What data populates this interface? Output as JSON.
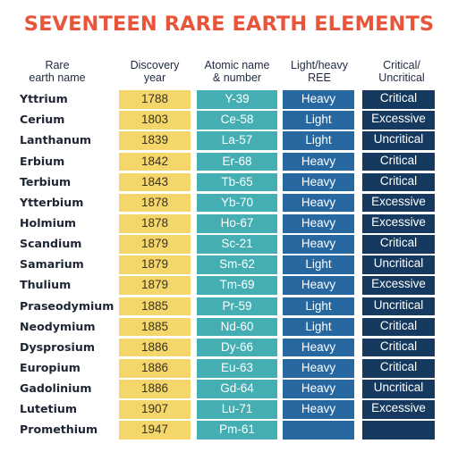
{
  "title": "SEVENTEEN RARE EARTH ELEMENTS",
  "headers": {
    "name_line1": "Rare",
    "name_line2": "earth name",
    "year_line1": "Discovery",
    "year_line2": "year",
    "atomic_line1": "Atomic name",
    "atomic_line2": "& number",
    "lh_line1": "Light/heavy",
    "lh_line2": "REE",
    "crit_line1": "Critical/",
    "crit_line2": "Uncritical"
  },
  "colors": {
    "title": "#e8553a",
    "year_column": "#f4d66a",
    "atomic_column": "#45aeb3",
    "light_heavy_column": "#2768a0",
    "critical_column": "#163a5f"
  },
  "rows": [
    {
      "name": "Yttrium",
      "year": "1788",
      "atomic": "Y-39",
      "type": "Heavy",
      "status": "Critical"
    },
    {
      "name": "Cerium",
      "year": "1803",
      "atomic": "Ce-58",
      "type": "Light",
      "status": "Excessive"
    },
    {
      "name": "Lanthanum",
      "year": "1839",
      "atomic": "La-57",
      "type": "Light",
      "status": "Uncritical"
    },
    {
      "name": "Erbium",
      "year": "1842",
      "atomic": "Er-68",
      "type": "Heavy",
      "status": "Critical"
    },
    {
      "name": "Terbium",
      "year": "1843",
      "atomic": "Tb-65",
      "type": "Heavy",
      "status": "Critical"
    },
    {
      "name": "Ytterbium",
      "year": "1878",
      "atomic": "Yb-70",
      "type": "Heavy",
      "status": "Excessive"
    },
    {
      "name": "Holmium",
      "year": "1878",
      "atomic": "Ho-67",
      "type": "Heavy",
      "status": "Excessive"
    },
    {
      "name": "Scandium",
      "year": "1879",
      "atomic": "Sc-21",
      "type": "Heavy",
      "status": "Critical"
    },
    {
      "name": "Samarium",
      "year": "1879",
      "atomic": "Sm-62",
      "type": "Light",
      "status": "Uncritical"
    },
    {
      "name": "Thulium",
      "year": "1879",
      "atomic": "Tm-69",
      "type": "Heavy",
      "status": "Excessive"
    },
    {
      "name": "Praseodymium",
      "year": "1885",
      "atomic": "Pr-59",
      "type": "Light",
      "status": "Uncritical"
    },
    {
      "name": "Neodymium",
      "year": "1885",
      "atomic": "Nd-60",
      "type": "Light",
      "status": "Critical"
    },
    {
      "name": "Dysprosium",
      "year": "1886",
      "atomic": "Dy-66",
      "type": "Heavy",
      "status": "Critical"
    },
    {
      "name": "Europium",
      "year": "1886",
      "atomic": "Eu-63",
      "type": "Heavy",
      "status": "Critical"
    },
    {
      "name": "Gadolinium",
      "year": "1886",
      "atomic": "Gd-64",
      "type": "Heavy",
      "status": "Uncritical"
    },
    {
      "name": "Lutetium",
      "year": "1907",
      "atomic": "Lu-71",
      "type": "Heavy",
      "status": "Excessive"
    },
    {
      "name": "Promethium",
      "year": "1947",
      "atomic": "Pm-61",
      "type": "",
      "status": ""
    }
  ]
}
